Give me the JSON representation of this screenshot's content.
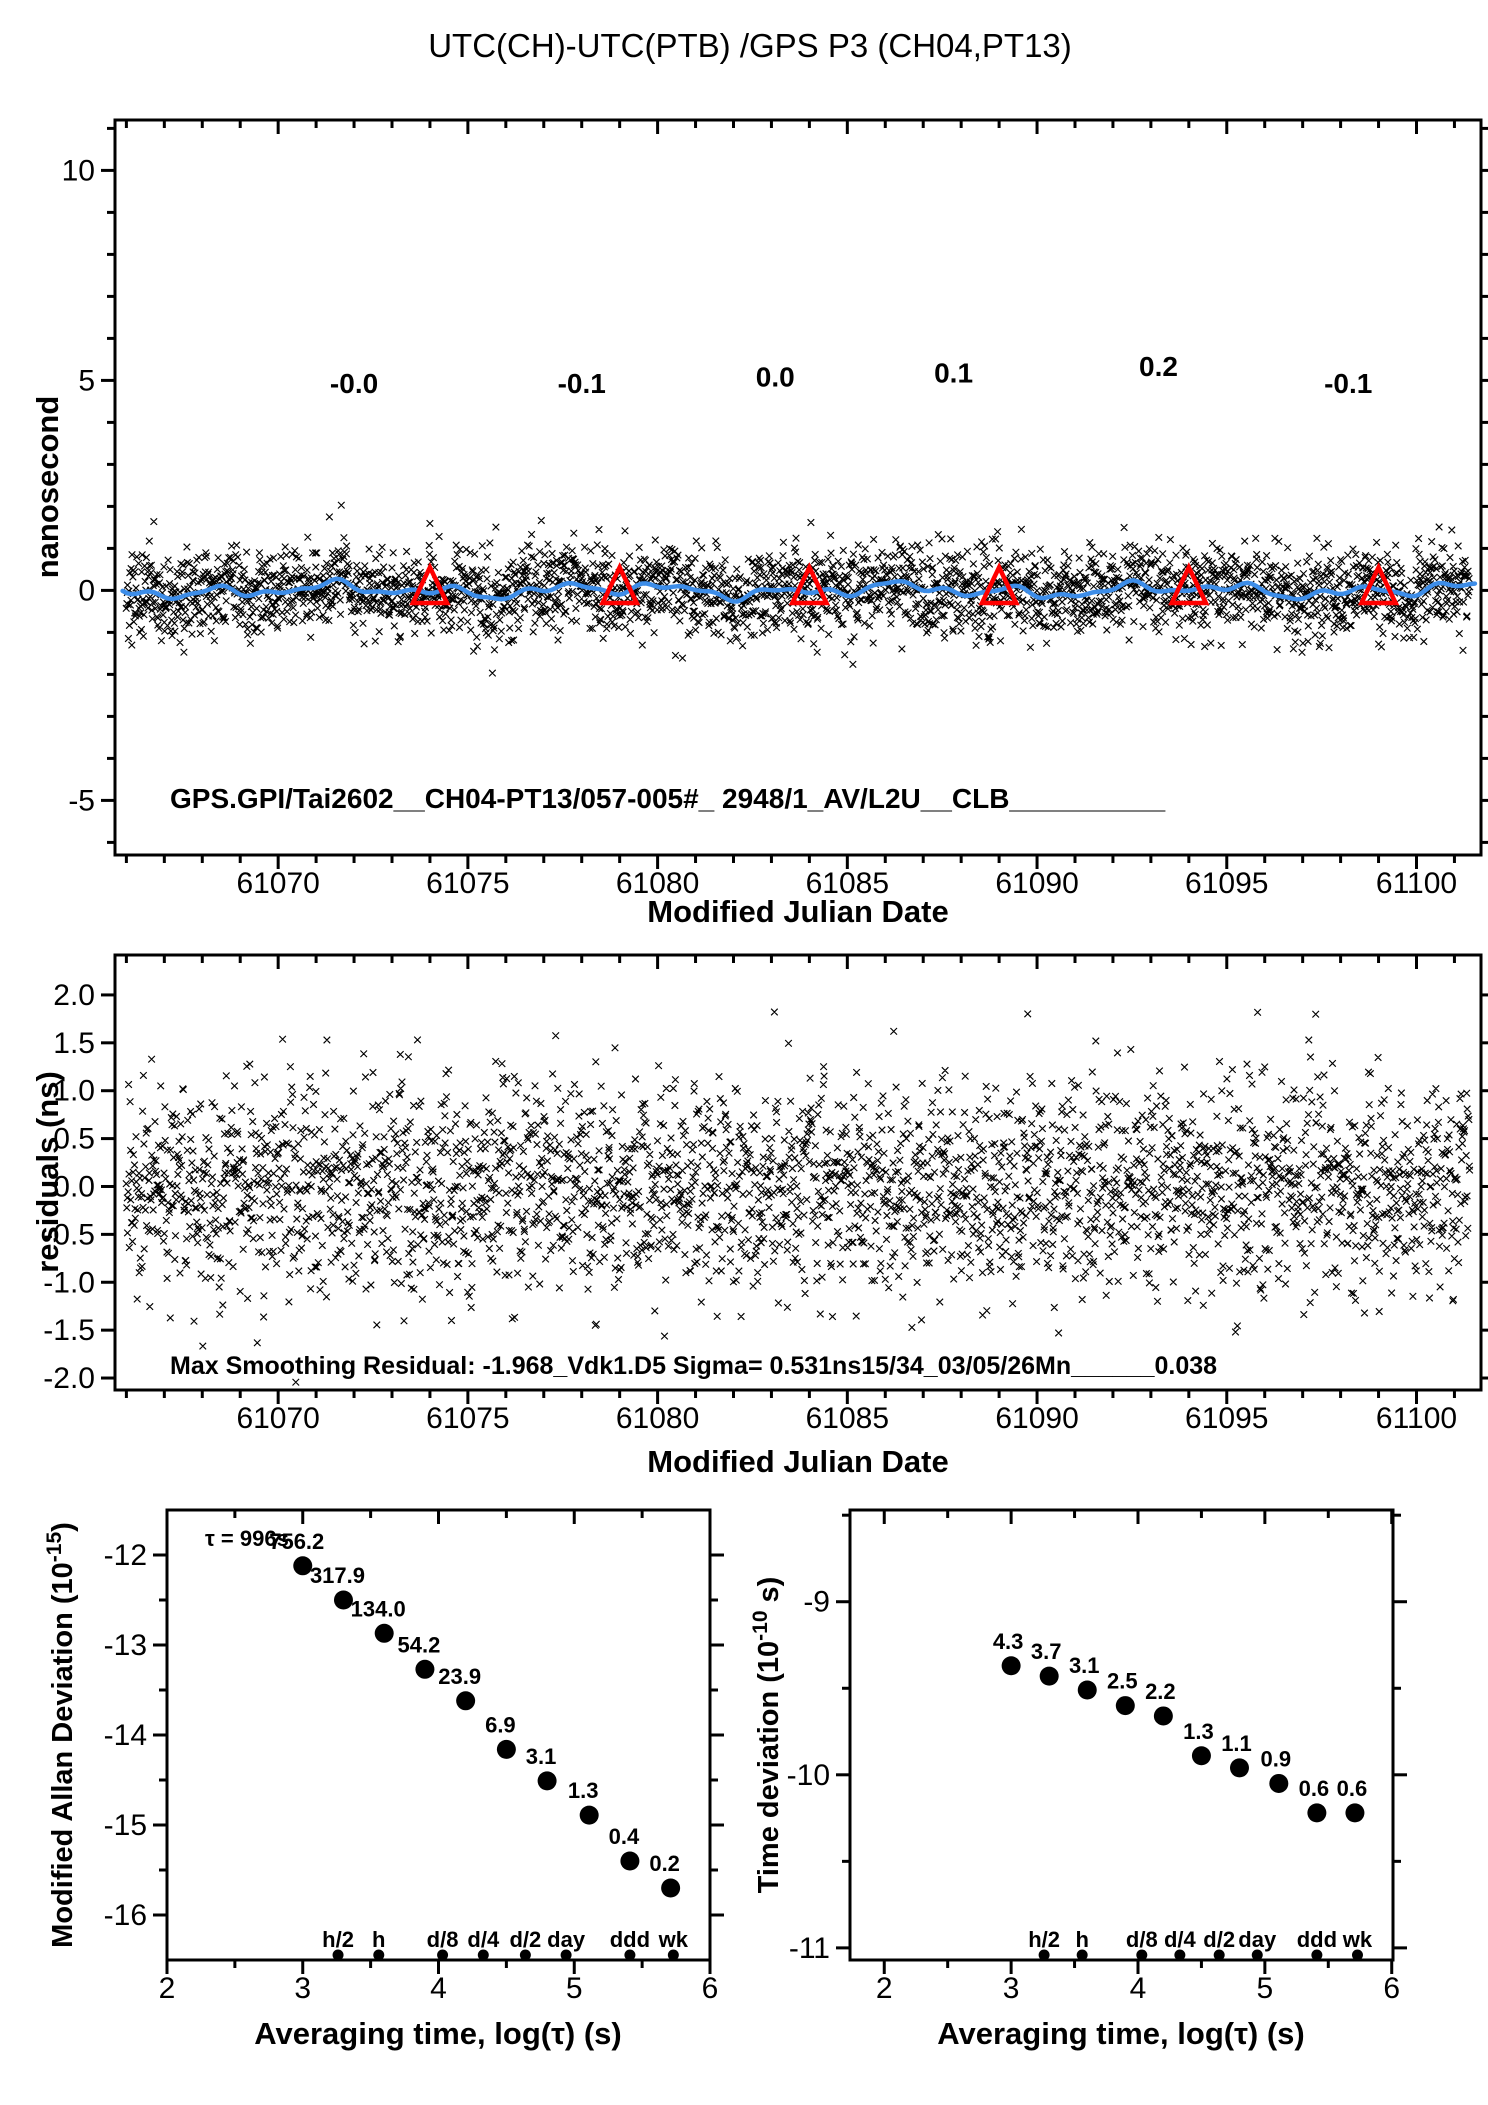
{
  "title": "UTC(CH)-UTC(PTB) /GPS P3 (CH04,PT13)",
  "labels": {
    "mjd_axis": "Modified Julian Date",
    "avg_axis": "Averaging time, log(τ) (s)",
    "top_y": "nanosecond",
    "mid_y": "residuals (ns)",
    "bl_y_base": "Modified Allan Deviation (10",
    "bl_y_exp": "-15",
    "bl_y_close": ")",
    "br_y_base": "Time deviation (10",
    "br_y_exp": "-10",
    "br_y_close": " s)",
    "gps_config": "GPS.GPI/Tai2602__CH04-PT13/057-005#_ 2948/1_AV/L2U__CLB__________",
    "residual_stats": "Max Smoothing Residual: -1.968_Vdk1.D5 Sigma= 0.531ns15/34_03/05/26Mn______0.038",
    "tau_note": "τ = 996s"
  },
  "colors": {
    "accent_red": "#ff0000",
    "smooth_blue": "#3d8de8",
    "marker_black": "#000000"
  },
  "chart_data": [
    {
      "id": "utc_difference",
      "type": "scatter",
      "title": "UTC(CH)-UTC(PTB) /GPS P3 (CH04,PT13)",
      "xlabel": "Modified Julian Date",
      "ylabel": "nanosecond",
      "xlim": [
        61065.7,
        61101.7
      ],
      "ylim": [
        -6.3,
        11.2
      ],
      "xticks": [
        61070,
        61075,
        61080,
        61085,
        61090,
        61095,
        61100
      ],
      "yticks": [
        10,
        5,
        0,
        -5
      ],
      "noise": {
        "n": 3000,
        "mean": 0,
        "sigma": 0.52,
        "seed": 101,
        "x_start": 61066.0,
        "x_end": 61101.4,
        "clip": 2.6,
        "description": "GPS P3 common-view time links, ~16 min spacing, noise band about the smoothed curve"
      },
      "smoothed_series": "blue smoothing curve wandering within about ±0.3 ns of zero",
      "calibration_triangles_x": [
        61074,
        61079,
        61084,
        61089,
        61094,
        61099
      ],
      "calibration_values": [
        {
          "text": "-0.0",
          "x": 61072.0,
          "y": 4.7
        },
        {
          "text": "-0.1",
          "x": 61078.0,
          "y": 4.7
        },
        {
          "text": "0.0",
          "x": 61083.1,
          "y": 4.85
        },
        {
          "text": "0.1",
          "x": 61087.8,
          "y": 4.95
        },
        {
          "text": "0.2",
          "x": 61093.2,
          "y": 5.1
        },
        {
          "text": "-0.1",
          "x": 61098.2,
          "y": 4.7
        }
      ],
      "inline_text": "GPS.GPI/Tai2602__CH04-PT13/057-005#_ 2948/1_AV/L2U__CLB__________"
    },
    {
      "id": "smoothing_residuals",
      "type": "scatter",
      "xlabel": "Modified Julian Date",
      "ylabel": "residuals (ns)",
      "xlim": [
        61065.7,
        61101.7
      ],
      "ylim": [
        -2.125,
        2.417
      ],
      "xticks": [
        61070,
        61075,
        61080,
        61085,
        61090,
        61095,
        61100
      ],
      "yticks": [
        2.0,
        1.5,
        1.0,
        0.5,
        0.0,
        -0.5,
        -1.0,
        -1.5,
        -2.0
      ],
      "ytick_labels": [
        "2.0",
        "1.5",
        "1.0",
        "0.5",
        "0.0",
        "-0.5",
        "-1.0",
        "-1.5",
        "-2.0"
      ],
      "noise": {
        "n": 3000,
        "mean": 0,
        "sigma": 0.55,
        "seed": 202,
        "x_start": 61066.0,
        "x_end": 61101.4,
        "clip": 2.1,
        "description": "residuals of Vondrak smoothing, sigma = 0.531 ns"
      },
      "stats_text": "Max Smoothing Residual: -1.968_Vdk1.D5 Sigma= 0.531ns15/34_03/05/26Mn______0.038"
    },
    {
      "id": "modified_allan_deviation",
      "type": "scatter",
      "xlabel": "Averaging time, log(τ) (s)",
      "ylabel": "Modified Allan Deviation (10^-15)",
      "xlim": [
        2,
        6
      ],
      "ylim": [
        -16.5,
        -11.5
      ],
      "xticks": [
        2,
        3,
        4,
        5,
        6
      ],
      "yticks": [
        -12,
        -13,
        -14,
        -15,
        -16
      ],
      "x": [
        3.0,
        3.3,
        3.6,
        3.9,
        4.2,
        4.5,
        4.8,
        5.11,
        5.41,
        5.71
      ],
      "y": [
        -12.12,
        -12.5,
        -12.87,
        -13.27,
        -13.62,
        -14.16,
        -14.51,
        -14.89,
        -15.4,
        -15.7
      ],
      "values": [
        756.2,
        317.9,
        134.0,
        54.2,
        23.9,
        6.9,
        3.1,
        1.3,
        0.4,
        0.2
      ],
      "point_labels": [
        "756.2",
        "317.9",
        "134.0",
        "54.2",
        "23.9",
        "6.9",
        "3.1",
        "1.3",
        "0.4",
        "0.2"
      ],
      "annotation": "τ = 996s",
      "tau_markers": {
        "labels": [
          "h/2",
          "h",
          "d/8",
          "d/4",
          "d/2",
          "day",
          "ddd",
          "wk"
        ],
        "x": [
          3.26,
          3.56,
          4.03,
          4.33,
          4.64,
          4.94,
          5.41,
          5.73
        ]
      }
    },
    {
      "id": "time_deviation",
      "type": "scatter",
      "xlabel": "Averaging time, log(τ) (s)",
      "ylabel": "Time deviation (10^-10 s)",
      "xlim": [
        1.73,
        6.01
      ],
      "ylim": [
        -11.07,
        -8.47
      ],
      "xticks": [
        2,
        3,
        4,
        5,
        6
      ],
      "yticks": [
        -9,
        -10,
        -11
      ],
      "x": [
        3.0,
        3.3,
        3.6,
        3.9,
        4.2,
        4.5,
        4.8,
        5.11,
        5.41,
        5.71
      ],
      "y": [
        -9.37,
        -9.43,
        -9.51,
        -9.6,
        -9.66,
        -9.89,
        -9.96,
        -10.05,
        -10.22,
        -10.22
      ],
      "values": [
        4.3,
        3.7,
        3.1,
        2.5,
        2.2,
        1.3,
        1.1,
        0.9,
        0.6,
        0.6
      ],
      "point_labels": [
        "4.3",
        "3.7",
        "3.1",
        "2.5",
        "2.2",
        "1.3",
        "1.1",
        "0.9",
        "0.6",
        "0.6"
      ],
      "tau_markers": {
        "labels": [
          "h/2",
          "h",
          "d/8",
          "d/4",
          "d/2",
          "day",
          "ddd",
          "wk"
        ],
        "x": [
          3.26,
          3.56,
          4.03,
          4.33,
          4.64,
          4.94,
          5.41,
          5.73
        ]
      }
    }
  ]
}
